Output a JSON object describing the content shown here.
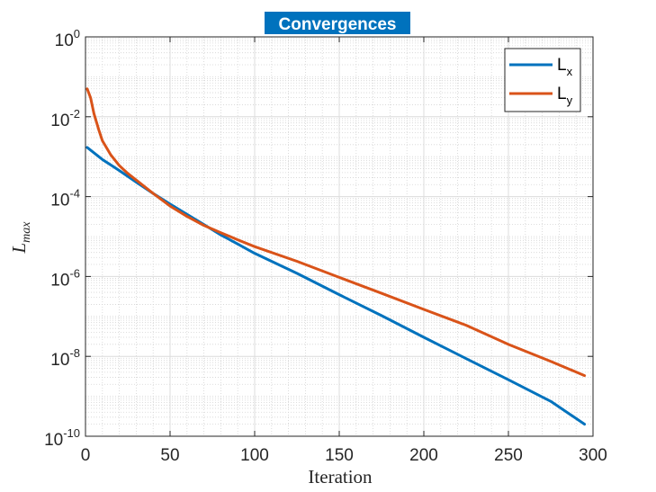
{
  "chart_data": {
    "type": "line",
    "title": "Convergences",
    "xlabel": "Iteration",
    "ylabel": {
      "base": "L",
      "sub": "max"
    },
    "xlim": [
      0,
      300
    ],
    "ylim": [
      1e-10,
      1
    ],
    "yscale": "log",
    "grid": true,
    "minor_grid": true,
    "xticks": [
      0,
      50,
      100,
      150,
      200,
      250,
      300
    ],
    "yticks": [
      {
        "value": 1,
        "base": "10",
        "exp": "0"
      },
      {
        "value": 0.01,
        "base": "10",
        "exp": "-2"
      },
      {
        "value": 0.0001,
        "base": "10",
        "exp": "-4"
      },
      {
        "value": 1e-06,
        "base": "10",
        "exp": "-6"
      },
      {
        "value": 1e-08,
        "base": "10",
        "exp": "-8"
      },
      {
        "value": 1e-10,
        "base": "10",
        "exp": "-10"
      }
    ],
    "legend_position": "top-right",
    "title_background": "#0072BD",
    "series": [
      {
        "name": "L",
        "name_sub": "x",
        "color": "#0072BD",
        "x": [
          1,
          10,
          20,
          30,
          40,
          50,
          60,
          70,
          80,
          90,
          100,
          125,
          150,
          175,
          200,
          225,
          250,
          275,
          295
        ],
        "y": [
          0.0017,
          0.00085,
          0.00045,
          0.00023,
          0.00012,
          6.5e-05,
          3.6e-05,
          2e-05,
          1.1e-05,
          6.5e-06,
          3.8e-06,
          1.2e-06,
          3.5e-07,
          1.05e-07,
          3e-08,
          8.8e-09,
          2.6e-09,
          7.5e-10,
          2e-10
        ]
      },
      {
        "name": "L",
        "name_sub": "y",
        "color": "#D95319",
        "x": [
          1,
          3,
          5,
          8,
          10,
          15,
          20,
          25,
          30,
          40,
          50,
          60,
          70,
          80,
          90,
          100,
          125,
          150,
          175,
          200,
          225,
          250,
          275,
          295
        ],
        "y": [
          0.05,
          0.03,
          0.012,
          0.0045,
          0.0025,
          0.0011,
          0.0006,
          0.00038,
          0.00026,
          0.00012,
          5.8e-05,
          3.2e-05,
          1.9e-05,
          1.25e-05,
          8.3e-06,
          5.6e-06,
          2.4e-06,
          9.5e-07,
          3.8e-07,
          1.5e-07,
          6e-08,
          2e-08,
          7.5e-09,
          3.3e-09
        ]
      }
    ]
  }
}
